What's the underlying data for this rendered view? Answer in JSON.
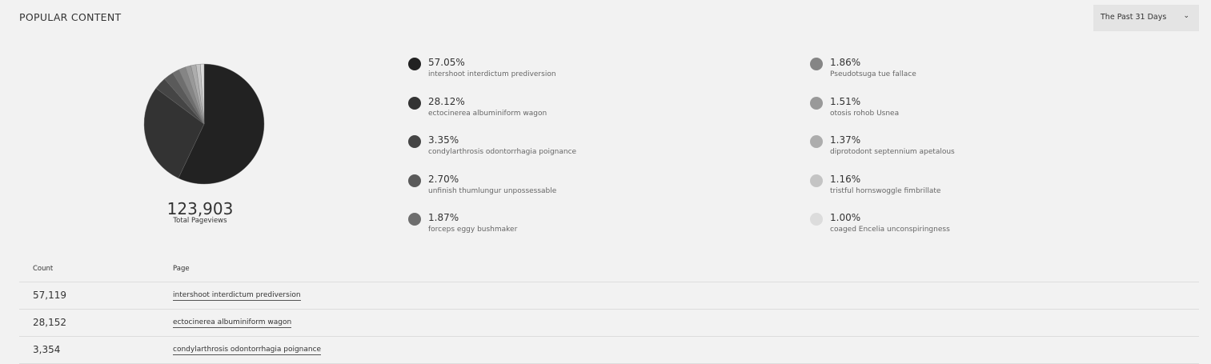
{
  "header": {
    "title": "POPULAR CONTENT",
    "range_select": {
      "value": "The Past 31 Days",
      "icon": "chevron-down-icon"
    }
  },
  "summary": {
    "total": "123,903",
    "total_label": "Total Pageviews"
  },
  "chart_data": {
    "type": "pie",
    "start": "top",
    "direction": "clockwise",
    "slices": [
      {
        "label": "intershoot interdictum prediversion",
        "pct_label": "57.05%",
        "value": 57.05,
        "color": "#222222"
      },
      {
        "label": "ectocinerea albuminiform wagon",
        "pct_label": "28.12%",
        "value": 28.12,
        "color": "#333333"
      },
      {
        "label": "condylarthrosis odontorrhagia poignance",
        "pct_label": "3.35%",
        "value": 3.35,
        "color": "#454545"
      },
      {
        "label": "unfinish thumlungur unpossessable",
        "pct_label": "2.70%",
        "value": 2.7,
        "color": "#5a5a5a"
      },
      {
        "label": "forceps eggy bushmaker",
        "pct_label": "1.87%",
        "value": 1.87,
        "color": "#6e6e6e"
      },
      {
        "label": "Pseudotsuga tue fallace",
        "pct_label": "1.86%",
        "value": 1.86,
        "color": "#858585"
      },
      {
        "label": "otosis rohob Usnea",
        "pct_label": "1.51%",
        "value": 1.51,
        "color": "#999999"
      },
      {
        "label": "diprotodont septennium apetalous",
        "pct_label": "1.37%",
        "value": 1.37,
        "color": "#adadad"
      },
      {
        "label": "tristful hornswoggle fimbrillate",
        "pct_label": "1.16%",
        "value": 1.16,
        "color": "#c4c4c4"
      },
      {
        "label": "coaged Encelia unconspiringness",
        "pct_label": "1.00%",
        "value": 1.0,
        "color": "#dcdcdc"
      }
    ]
  },
  "table": {
    "headers": [
      "Count",
      "Page"
    ],
    "rows": [
      {
        "count": "57,119",
        "page": "intershoot interdictum prediversion"
      },
      {
        "count": "28,152",
        "page": "ectocinerea albuminiform wagon"
      },
      {
        "count": "3,354",
        "page": "condylarthrosis odontorrhagia poignance"
      }
    ]
  }
}
